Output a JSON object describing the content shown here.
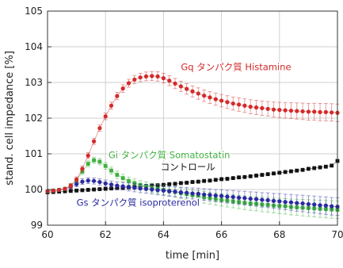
{
  "chart_data": {
    "type": "scatter",
    "xlabel": "time [min]",
    "ylabel": "stand. cell impedance [%]",
    "xlim": [
      60,
      70
    ],
    "ylim": [
      99,
      105
    ],
    "grid": true,
    "x_ticks": [
      {
        "value": 60,
        "label": "60"
      },
      {
        "value": 62,
        "label": "62"
      },
      {
        "value": 64,
        "label": "64"
      },
      {
        "value": 66,
        "label": "66"
      },
      {
        "value": 68,
        "label": "68"
      },
      {
        "value": 70,
        "label": "70"
      }
    ],
    "y_ticks": [
      {
        "value": 99,
        "label": "99"
      },
      {
        "value": 100,
        "label": "100"
      },
      {
        "value": 101,
        "label": "101"
      },
      {
        "value": 102,
        "label": "102"
      },
      {
        "value": 103,
        "label": "103"
      },
      {
        "value": 104,
        "label": "104"
      },
      {
        "value": 105,
        "label": "105"
      }
    ],
    "series": [
      {
        "name": "Gq タンパク質 Histamine",
        "color": "#d42a2a",
        "marker": "circle",
        "error_bars": true,
        "points": [
          [
            60.0,
            99.95
          ],
          [
            60.2,
            99.97
          ],
          [
            60.4,
            99.99
          ],
          [
            60.6,
            100.02
          ],
          [
            60.8,
            100.1
          ],
          [
            61.0,
            100.28
          ],
          [
            61.2,
            100.58
          ],
          [
            61.4,
            100.95
          ],
          [
            61.6,
            101.35
          ],
          [
            61.8,
            101.72
          ],
          [
            62.0,
            102.05
          ],
          [
            62.2,
            102.35
          ],
          [
            62.4,
            102.62
          ],
          [
            62.6,
            102.83
          ],
          [
            62.8,
            102.98
          ],
          [
            63.0,
            103.08
          ],
          [
            63.2,
            103.14
          ],
          [
            63.4,
            103.17
          ],
          [
            63.6,
            103.18
          ],
          [
            63.8,
            103.17
          ],
          [
            64.0,
            103.12
          ],
          [
            64.2,
            103.05
          ],
          [
            64.4,
            102.97
          ],
          [
            64.6,
            102.89
          ],
          [
            64.8,
            102.82
          ],
          [
            65.0,
            102.75
          ],
          [
            65.2,
            102.69
          ],
          [
            65.4,
            102.63
          ],
          [
            65.6,
            102.58
          ],
          [
            65.8,
            102.53
          ],
          [
            66.0,
            102.49
          ],
          [
            66.2,
            102.45
          ],
          [
            66.4,
            102.41
          ],
          [
            66.6,
            102.38
          ],
          [
            66.8,
            102.35
          ],
          [
            67.0,
            102.32
          ],
          [
            67.2,
            102.3
          ],
          [
            67.4,
            102.28
          ],
          [
            67.6,
            102.26
          ],
          [
            67.8,
            102.24
          ],
          [
            68.0,
            102.23
          ],
          [
            68.2,
            102.22
          ],
          [
            68.4,
            102.21
          ],
          [
            68.6,
            102.2
          ],
          [
            68.8,
            102.19
          ],
          [
            69.0,
            102.18
          ],
          [
            69.2,
            102.18
          ],
          [
            69.4,
            102.17
          ],
          [
            69.6,
            102.17
          ],
          [
            69.8,
            102.16
          ],
          [
            70.0,
            102.15
          ]
        ]
      },
      {
        "name": "Gi タンパク質 Somatostatin",
        "color": "#3fb03f",
        "marker": "square",
        "error_bars": true,
        "points": [
          [
            60.0,
            99.95
          ],
          [
            60.2,
            99.97
          ],
          [
            60.4,
            99.99
          ],
          [
            60.6,
            100.02
          ],
          [
            60.8,
            100.1
          ],
          [
            61.0,
            100.25
          ],
          [
            61.2,
            100.5
          ],
          [
            61.4,
            100.72
          ],
          [
            61.6,
            100.82
          ],
          [
            61.8,
            100.78
          ],
          [
            62.0,
            100.66
          ],
          [
            62.2,
            100.53
          ],
          [
            62.4,
            100.41
          ],
          [
            62.6,
            100.32
          ],
          [
            62.8,
            100.24
          ],
          [
            63.0,
            100.18
          ],
          [
            63.2,
            100.13
          ],
          [
            63.4,
            100.09
          ],
          [
            63.6,
            100.05
          ],
          [
            63.8,
            100.02
          ],
          [
            64.0,
            99.99
          ],
          [
            64.2,
            99.96
          ],
          [
            64.4,
            99.93
          ],
          [
            64.6,
            99.9
          ],
          [
            64.8,
            99.87
          ],
          [
            65.0,
            99.84
          ],
          [
            65.2,
            99.81
          ],
          [
            65.4,
            99.78
          ],
          [
            65.6,
            99.76
          ],
          [
            65.8,
            99.73
          ],
          [
            66.0,
            99.71
          ],
          [
            66.2,
            99.69
          ],
          [
            66.4,
            99.67
          ],
          [
            66.6,
            99.65
          ],
          [
            66.8,
            99.63
          ],
          [
            67.0,
            99.61
          ],
          [
            67.2,
            99.6
          ],
          [
            67.4,
            99.58
          ],
          [
            67.6,
            99.57
          ],
          [
            67.8,
            99.55
          ],
          [
            68.0,
            99.54
          ],
          [
            68.2,
            99.53
          ],
          [
            68.4,
            99.51
          ],
          [
            68.6,
            99.5
          ],
          [
            68.8,
            99.49
          ],
          [
            69.0,
            99.48
          ],
          [
            69.2,
            99.47
          ],
          [
            69.4,
            99.46
          ],
          [
            69.6,
            99.45
          ],
          [
            69.8,
            99.44
          ],
          [
            70.0,
            99.43
          ]
        ]
      },
      {
        "name": "コントロール",
        "color": "#111111",
        "marker": "square",
        "error_bars": false,
        "points": [
          [
            60.0,
            99.92
          ],
          [
            60.2,
            99.93
          ],
          [
            60.4,
            99.94
          ],
          [
            60.6,
            99.95
          ],
          [
            60.8,
            99.96
          ],
          [
            61.0,
            99.97
          ],
          [
            61.2,
            99.98
          ],
          [
            61.4,
            99.99
          ],
          [
            61.6,
            100.0
          ],
          [
            61.8,
            100.01
          ],
          [
            62.0,
            100.02
          ],
          [
            62.2,
            100.03
          ],
          [
            62.4,
            100.04
          ],
          [
            62.6,
            100.05
          ],
          [
            62.8,
            100.06
          ],
          [
            63.0,
            100.07
          ],
          [
            63.2,
            100.08
          ],
          [
            63.4,
            100.1
          ],
          [
            63.6,
            100.11
          ],
          [
            63.8,
            100.12
          ],
          [
            64.0,
            100.13
          ],
          [
            64.2,
            100.15
          ],
          [
            64.4,
            100.16
          ],
          [
            64.6,
            100.18
          ],
          [
            64.8,
            100.19
          ],
          [
            65.0,
            100.21
          ],
          [
            65.2,
            100.22
          ],
          [
            65.4,
            100.24
          ],
          [
            65.6,
            100.25
          ],
          [
            65.8,
            100.27
          ],
          [
            66.0,
            100.29
          ],
          [
            66.2,
            100.3
          ],
          [
            66.4,
            100.32
          ],
          [
            66.6,
            100.34
          ],
          [
            66.8,
            100.35
          ],
          [
            67.0,
            100.37
          ],
          [
            67.2,
            100.39
          ],
          [
            67.4,
            100.41
          ],
          [
            67.6,
            100.43
          ],
          [
            67.8,
            100.45
          ],
          [
            68.0,
            100.47
          ],
          [
            68.2,
            100.49
          ],
          [
            68.4,
            100.51
          ],
          [
            68.6,
            100.53
          ],
          [
            68.8,
            100.55
          ],
          [
            69.0,
            100.58
          ],
          [
            69.2,
            100.6
          ],
          [
            69.4,
            100.62
          ],
          [
            69.6,
            100.64
          ],
          [
            69.8,
            100.67
          ],
          [
            70.0,
            100.8
          ]
        ]
      },
      {
        "name": "Gs タンパク質 isoproterenol",
        "color": "#2a2aa0",
        "marker": "circle",
        "error_bars": true,
        "points": [
          [
            60.0,
            99.95
          ],
          [
            60.2,
            99.97
          ],
          [
            60.4,
            99.99
          ],
          [
            60.6,
            100.02
          ],
          [
            60.8,
            100.08
          ],
          [
            61.0,
            100.15
          ],
          [
            61.2,
            100.22
          ],
          [
            61.4,
            100.25
          ],
          [
            61.6,
            100.24
          ],
          [
            61.8,
            100.21
          ],
          [
            62.0,
            100.17
          ],
          [
            62.2,
            100.14
          ],
          [
            62.4,
            100.11
          ],
          [
            62.6,
            100.09
          ],
          [
            62.8,
            100.07
          ],
          [
            63.0,
            100.05
          ],
          [
            63.2,
            100.03
          ],
          [
            63.4,
            100.02
          ],
          [
            63.6,
            100.0
          ],
          [
            63.8,
            99.98
          ],
          [
            64.0,
            99.97
          ],
          [
            64.2,
            99.95
          ],
          [
            64.4,
            99.94
          ],
          [
            64.6,
            99.92
          ],
          [
            64.8,
            99.91
          ],
          [
            65.0,
            99.89
          ],
          [
            65.2,
            99.88
          ],
          [
            65.4,
            99.86
          ],
          [
            65.6,
            99.85
          ],
          [
            65.8,
            99.83
          ],
          [
            66.0,
            99.82
          ],
          [
            66.2,
            99.8
          ],
          [
            66.4,
            99.79
          ],
          [
            66.6,
            99.77
          ],
          [
            66.8,
            99.76
          ],
          [
            67.0,
            99.74
          ],
          [
            67.2,
            99.73
          ],
          [
            67.4,
            99.71
          ],
          [
            67.6,
            99.7
          ],
          [
            67.8,
            99.68
          ],
          [
            68.0,
            99.67
          ],
          [
            68.2,
            99.65
          ],
          [
            68.4,
            99.64
          ],
          [
            68.6,
            99.62
          ],
          [
            68.8,
            99.61
          ],
          [
            69.0,
            99.59
          ],
          [
            69.2,
            99.58
          ],
          [
            69.4,
            99.56
          ],
          [
            69.6,
            99.55
          ],
          [
            69.8,
            99.53
          ],
          [
            70.0,
            99.52
          ]
        ]
      }
    ],
    "annotations": [
      {
        "text": "Gq タンパク質 Histamine",
        "x": 64.6,
        "y": 103.35,
        "color": "#d42a2a"
      },
      {
        "text": "Gi タンパク質 Somatostatin",
        "x": 62.1,
        "y": 100.88,
        "color": "#3fb03f"
      },
      {
        "text": "コントロール",
        "x": 63.9,
        "y": 100.55,
        "color": "#111111"
      },
      {
        "text": "Gs タンパク質 isoproterenol",
        "x": 61.0,
        "y": 99.55,
        "color": "#2a2aa0"
      }
    ]
  }
}
